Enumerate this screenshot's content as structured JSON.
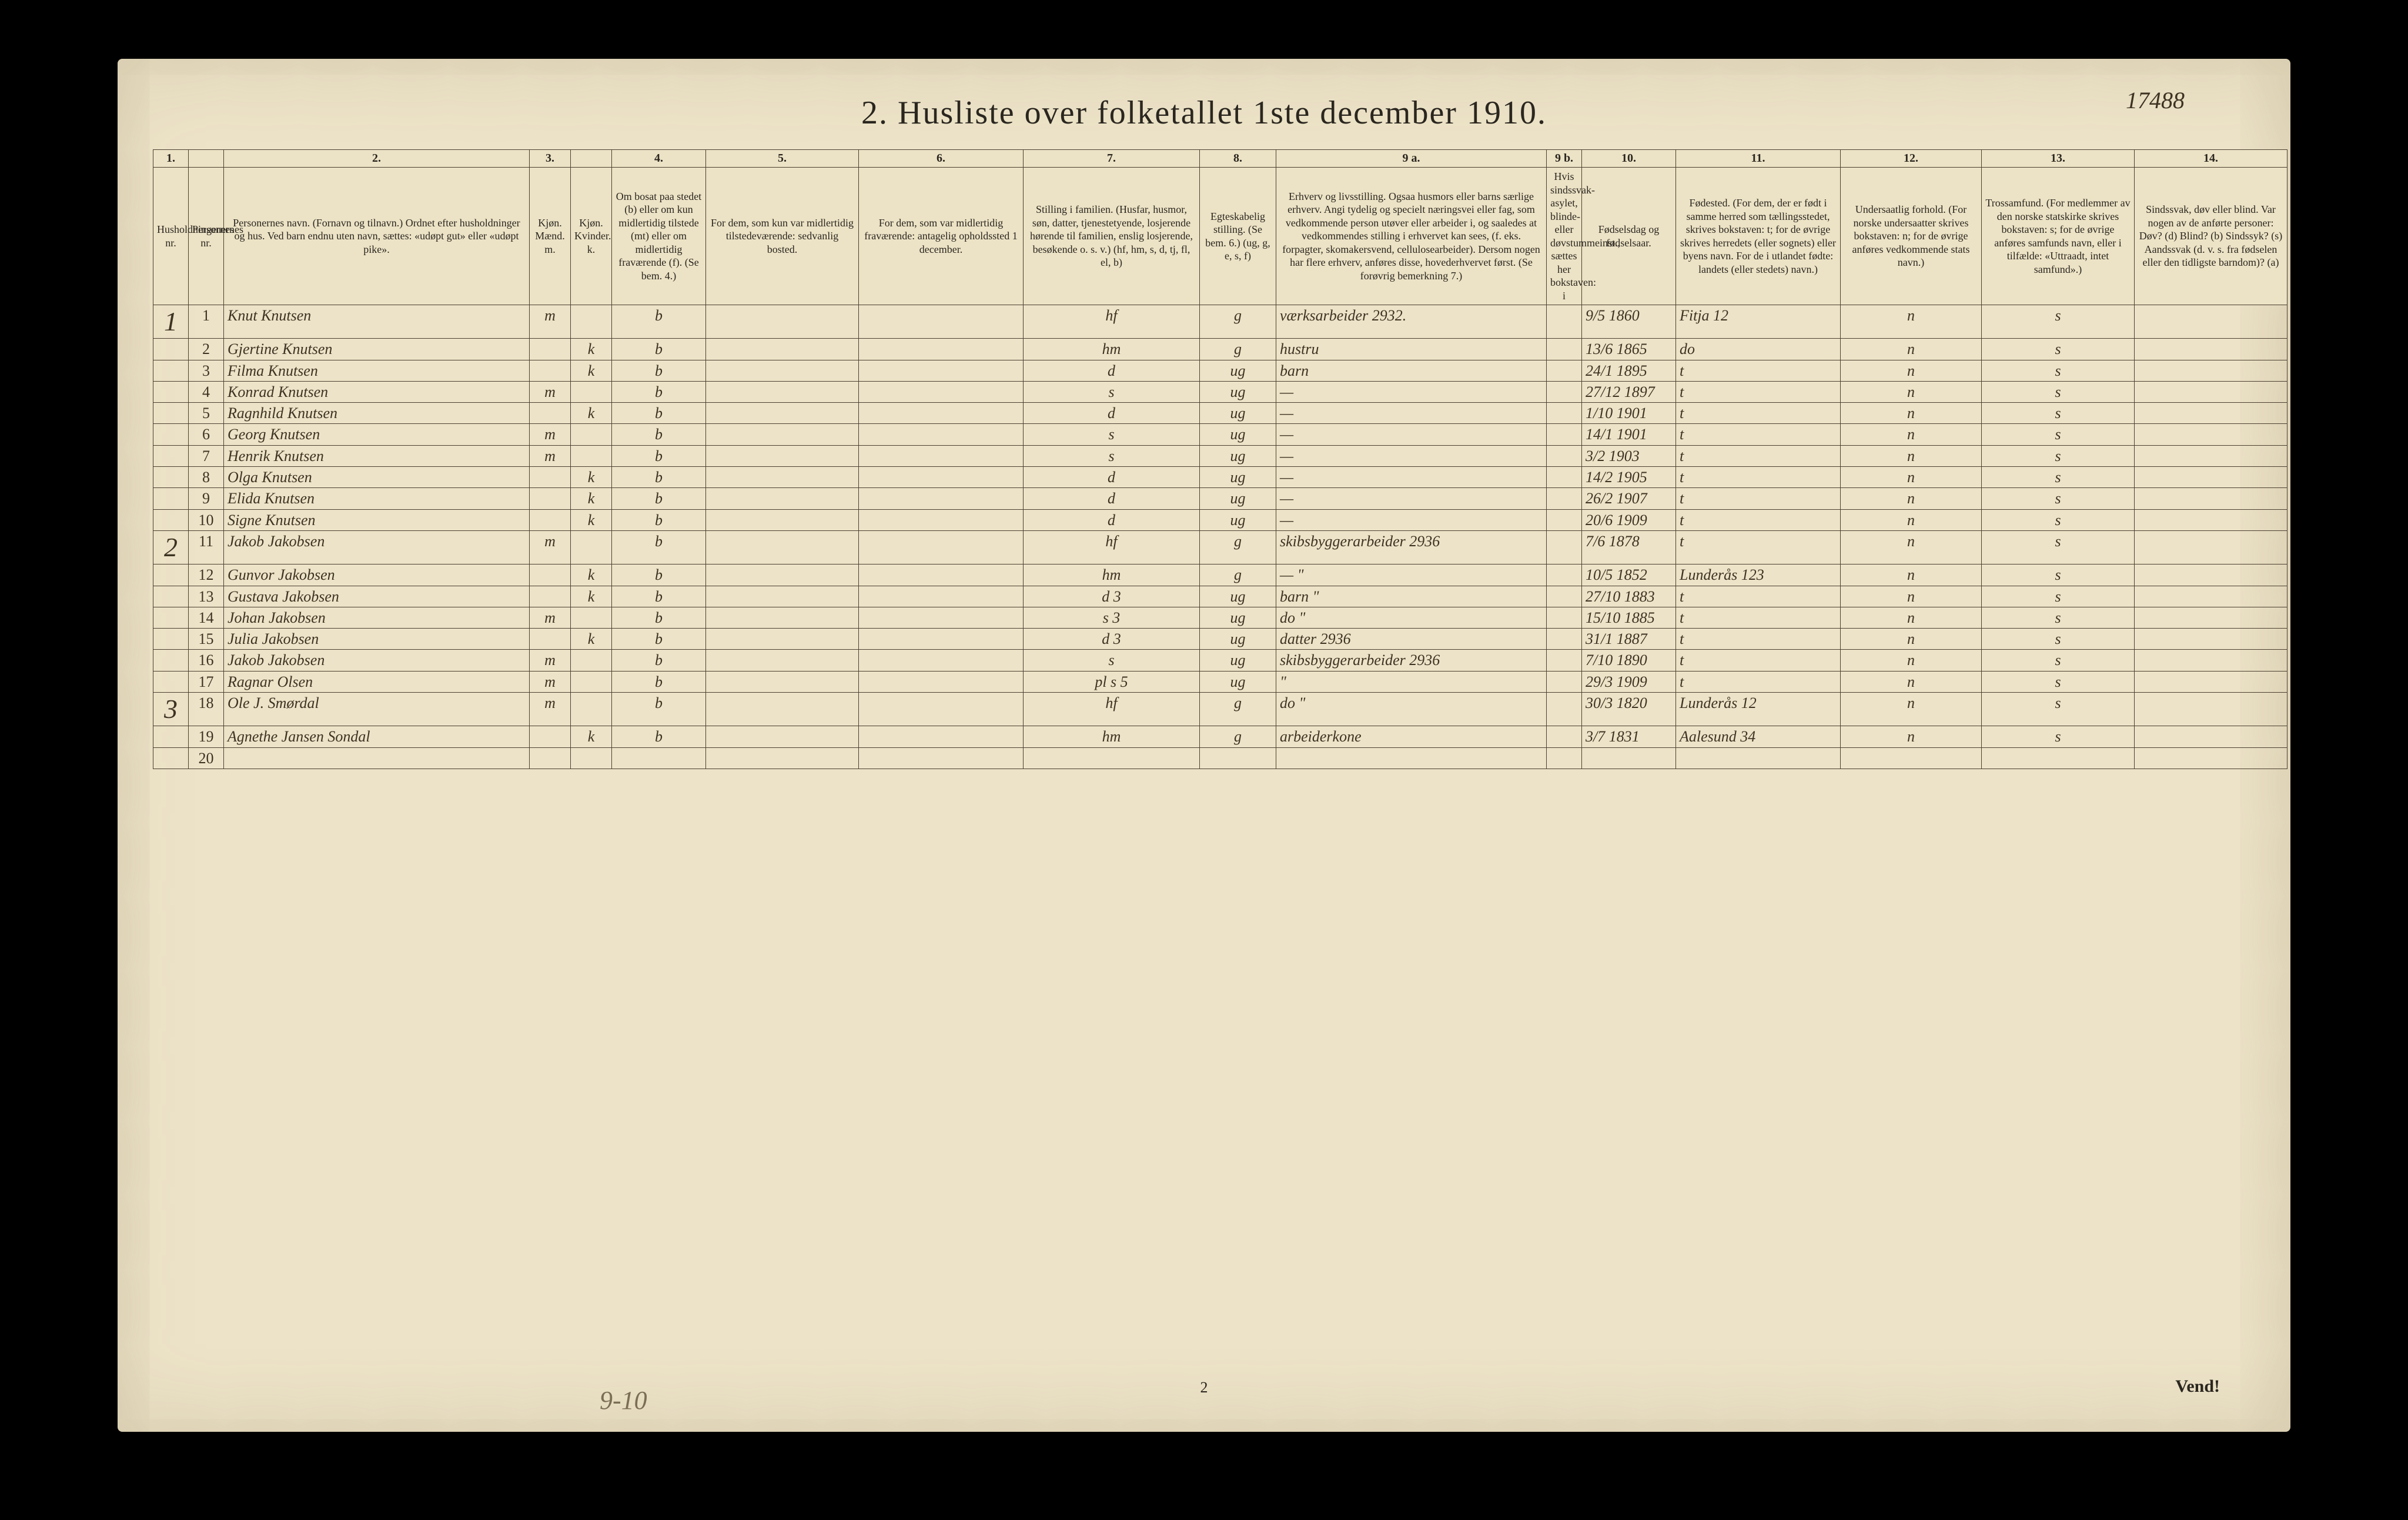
{
  "title": "2.  Husliste over folketallet 1ste december 1910.",
  "corner_number": "17488",
  "footer_center": "2",
  "footer_right": "Vend!",
  "footer_pencil": "9-10",
  "colors": {
    "paper": "#ede3c8",
    "ink": "#2a261f",
    "rule": "#4a4030",
    "pencil": "#7a6e55",
    "background": "#000000"
  },
  "column_numbers": [
    "1.",
    "",
    "2.",
    "3.",
    "",
    "4.",
    "5.",
    "6.",
    "7.",
    "8.",
    "9 a.",
    "9 b.",
    "10.",
    "11.",
    "12.",
    "13.",
    "14."
  ],
  "headers": [
    "Husholdningernes nr.",
    "Personernes nr.",
    "Personernes navn.\n(Fornavn og tilnavn.)\nOrdnet efter husholdninger og hus.\nVed barn endnu uten navn, sættes: «udøpt gut» eller «udøpt pike».",
    "Kjøn.\nMænd.\nm.",
    "Kjøn.\nKvinder.\nk.",
    "Om bosat paa stedet (b) eller om kun midlertidig tilstede (mt) eller om midlertidig fraværende (f).\n(Se bem. 4.)",
    "For dem, som kun var midlertidig tilstedeværende:\nsedvanlig bosted.",
    "For dem, som var midlertidig fraværende:\nantagelig opholdssted 1 december.",
    "Stilling i familien.\n(Husfar, husmor, søn, datter, tjenestetyende, losjerende hørende til familien, enslig losjerende, besøkende o. s. v.)\n(hf, hm, s, d, tj, fl, el, b)",
    "Egteskabelig stilling.\n(Se bem. 6.)\n(ug, g, e, s, f)",
    "Erhverv og livsstilling.\nOgsaa husmors eller barns særlige erhverv. Angi tydelig og specielt næringsvei eller fag, som vedkommende person utøver eller arbeider i, og saaledes at vedkommendes stilling i erhvervet kan sees, (f. eks. forpagter, skomakersvend, cellulosearbeider). Dersom nogen har flere erhverv, anføres disse, hovederhvervet først.\n(Se forøvrig bemerkning 7.)",
    "Hvis sindssvak-asylet, blinde- eller døvstummeinst., sættes her bokstaven: i",
    "Fødselsdag og fødselsaar.",
    "Fødested.\n(For dem, der er født i samme herred som tællingsstedet, skrives bokstaven: t; for de øvrige skrives herredets (eller sognets) eller byens navn. For de i utlandet fødte: landets (eller stedets) navn.)",
    "Undersaatlig forhold.\n(For norske undersaatter skrives bokstaven: n; for de øvrige anføres vedkommende stats navn.)",
    "Trossamfund.\n(For medlemmer av den norske statskirke skrives bokstaven: s; for de øvrige anføres samfunds navn, eller i tilfælde: «Uttraadt, intet samfund».)",
    "Sindssvak, døv eller blind.\nVar nogen av de anførte personer:\nDøv? (d)\nBlind? (b)\nSindssyk? (s)\nAandssvak (d. v. s. fra fødselen eller den tidligste barndom)? (a)"
  ],
  "rows": [
    {
      "hh": "1",
      "pn": "1",
      "name": "Knut Knutsen",
      "m": "m",
      "k": "",
      "res": "b",
      "temp": "",
      "away": "",
      "fam": "hf",
      "mar": "g",
      "occ": "værksarbeider 2932.",
      "inst": "",
      "birth": "9/5 1860",
      "place": "Fitja 12",
      "nat": "n",
      "rel": "s",
      "dis": ""
    },
    {
      "hh": "",
      "pn": "2",
      "name": "Gjertine Knutsen",
      "m": "",
      "k": "k",
      "res": "b",
      "temp": "",
      "away": "",
      "fam": "hm",
      "mar": "g",
      "occ": "hustru",
      "inst": "",
      "birth": "13/6 1865",
      "place": "do",
      "nat": "n",
      "rel": "s",
      "dis": ""
    },
    {
      "hh": "",
      "pn": "3",
      "name": "Filma Knutsen",
      "m": "",
      "k": "k",
      "res": "b",
      "temp": "",
      "away": "",
      "fam": "d",
      "mar": "ug",
      "occ": "barn",
      "inst": "",
      "birth": "24/1 1895",
      "place": "t",
      "nat": "n",
      "rel": "s",
      "dis": ""
    },
    {
      "hh": "",
      "pn": "4",
      "name": "Konrad Knutsen",
      "m": "m",
      "k": "",
      "res": "b",
      "temp": "",
      "away": "",
      "fam": "s",
      "mar": "ug",
      "occ": "—",
      "inst": "",
      "birth": "27/12 1897",
      "place": "t",
      "nat": "n",
      "rel": "s",
      "dis": ""
    },
    {
      "hh": "",
      "pn": "5",
      "name": "Ragnhild Knutsen",
      "m": "",
      "k": "k",
      "res": "b",
      "temp": "",
      "away": "",
      "fam": "d",
      "mar": "ug",
      "occ": "—",
      "inst": "",
      "birth": "1/10 1901",
      "place": "t",
      "nat": "n",
      "rel": "s",
      "dis": ""
    },
    {
      "hh": "",
      "pn": "6",
      "name": "Georg Knutsen",
      "m": "m",
      "k": "",
      "res": "b",
      "temp": "",
      "away": "",
      "fam": "s",
      "mar": "ug",
      "occ": "—",
      "inst": "",
      "birth": "14/1 1901",
      "place": "t",
      "nat": "n",
      "rel": "s",
      "dis": ""
    },
    {
      "hh": "",
      "pn": "7",
      "name": "Henrik Knutsen",
      "m": "m",
      "k": "",
      "res": "b",
      "temp": "",
      "away": "",
      "fam": "s",
      "mar": "ug",
      "occ": "—",
      "inst": "",
      "birth": "3/2 1903",
      "place": "t",
      "nat": "n",
      "rel": "s",
      "dis": ""
    },
    {
      "hh": "",
      "pn": "8",
      "name": "Olga Knutsen",
      "m": "",
      "k": "k",
      "res": "b",
      "temp": "",
      "away": "",
      "fam": "d",
      "mar": "ug",
      "occ": "—",
      "inst": "",
      "birth": "14/2 1905",
      "place": "t",
      "nat": "n",
      "rel": "s",
      "dis": ""
    },
    {
      "hh": "",
      "pn": "9",
      "name": "Elida Knutsen",
      "m": "",
      "k": "k",
      "res": "b",
      "temp": "",
      "away": "",
      "fam": "d",
      "mar": "ug",
      "occ": "—",
      "inst": "",
      "birth": "26/2 1907",
      "place": "t",
      "nat": "n",
      "rel": "s",
      "dis": ""
    },
    {
      "hh": "",
      "pn": "10",
      "name": "Signe Knutsen",
      "m": "",
      "k": "k",
      "res": "b",
      "temp": "",
      "away": "",
      "fam": "d",
      "mar": "ug",
      "occ": "—",
      "inst": "",
      "birth": "20/6 1909",
      "place": "t",
      "nat": "n",
      "rel": "s",
      "dis": ""
    },
    {
      "hh": "2",
      "pn": "11",
      "name": "Jakob Jakobsen",
      "m": "m",
      "k": "",
      "res": "b",
      "temp": "",
      "away": "",
      "fam": "hf",
      "mar": "g",
      "occ": "skibsbyggerarbeider 2936",
      "inst": "",
      "birth": "7/6 1878",
      "place": "t",
      "nat": "n",
      "rel": "s",
      "dis": ""
    },
    {
      "hh": "",
      "pn": "12",
      "name": "Gunvor Jakobsen",
      "m": "",
      "k": "k",
      "res": "b",
      "temp": "",
      "away": "",
      "fam": "hm",
      "mar": "g",
      "occ": "—  \"",
      "inst": "",
      "birth": "10/5 1852",
      "place": "Lunderås 123",
      "nat": "n",
      "rel": "s",
      "dis": ""
    },
    {
      "hh": "",
      "pn": "13",
      "name": "Gustava Jakobsen",
      "m": "",
      "k": "k",
      "res": "b",
      "temp": "",
      "away": "",
      "fam": "d  3",
      "mar": "ug",
      "occ": "barn  \"",
      "inst": "",
      "birth": "27/10 1883",
      "place": "t",
      "nat": "n",
      "rel": "s",
      "dis": ""
    },
    {
      "hh": "",
      "pn": "14",
      "name": "Johan Jakobsen",
      "m": "m",
      "k": "",
      "res": "b",
      "temp": "",
      "away": "",
      "fam": "s  3",
      "mar": "ug",
      "occ": "do  \"",
      "inst": "",
      "birth": "15/10 1885",
      "place": "t",
      "nat": "n",
      "rel": "s",
      "dis": ""
    },
    {
      "hh": "",
      "pn": "15",
      "name": "Julia Jakobsen",
      "m": "",
      "k": "k",
      "res": "b",
      "temp": "",
      "away": "",
      "fam": "d  3",
      "mar": "ug",
      "occ": "datter 2936",
      "inst": "",
      "birth": "31/1 1887",
      "place": "t",
      "nat": "n",
      "rel": "s",
      "dis": ""
    },
    {
      "hh": "",
      "pn": "16",
      "name": "Jakob Jakobsen",
      "m": "m",
      "k": "",
      "res": "b",
      "temp": "",
      "away": "",
      "fam": "s",
      "mar": "ug",
      "occ": "skibsbyggerarbeider 2936",
      "inst": "",
      "birth": "7/10 1890",
      "place": "t",
      "nat": "n",
      "rel": "s",
      "dis": ""
    },
    {
      "hh": "",
      "pn": "17",
      "name": "Ragnar Olsen",
      "m": "m",
      "k": "",
      "res": "b",
      "temp": "",
      "away": "",
      "fam": "pl s  5",
      "mar": "ug",
      "occ": "\"",
      "inst": "",
      "birth": "29/3 1909",
      "place": "t",
      "nat": "n",
      "rel": "s",
      "dis": ""
    },
    {
      "hh": "3",
      "pn": "18",
      "name": "Ole J. Smørdal",
      "m": "m",
      "k": "",
      "res": "b",
      "temp": "",
      "away": "",
      "fam": "hf",
      "mar": "g",
      "occ": "do  \"",
      "inst": "",
      "birth": "30/3 1820",
      "place": "Lunderås 12",
      "nat": "n",
      "rel": "s",
      "dis": ""
    },
    {
      "hh": "",
      "pn": "19",
      "name": "Agnethe Jansen Sondal",
      "m": "",
      "k": "k",
      "res": "b",
      "temp": "",
      "away": "",
      "fam": "hm",
      "mar": "g",
      "occ": "arbeiderkone",
      "inst": "",
      "birth": "3/7 1831",
      "place": "Aalesund 34",
      "nat": "n",
      "rel": "s",
      "dis": ""
    },
    {
      "hh": "",
      "pn": "20",
      "name": "",
      "m": "",
      "k": "",
      "res": "",
      "temp": "",
      "away": "",
      "fam": "",
      "mar": "",
      "occ": "",
      "inst": "",
      "birth": "",
      "place": "",
      "nat": "",
      "rel": "",
      "dis": ""
    }
  ]
}
